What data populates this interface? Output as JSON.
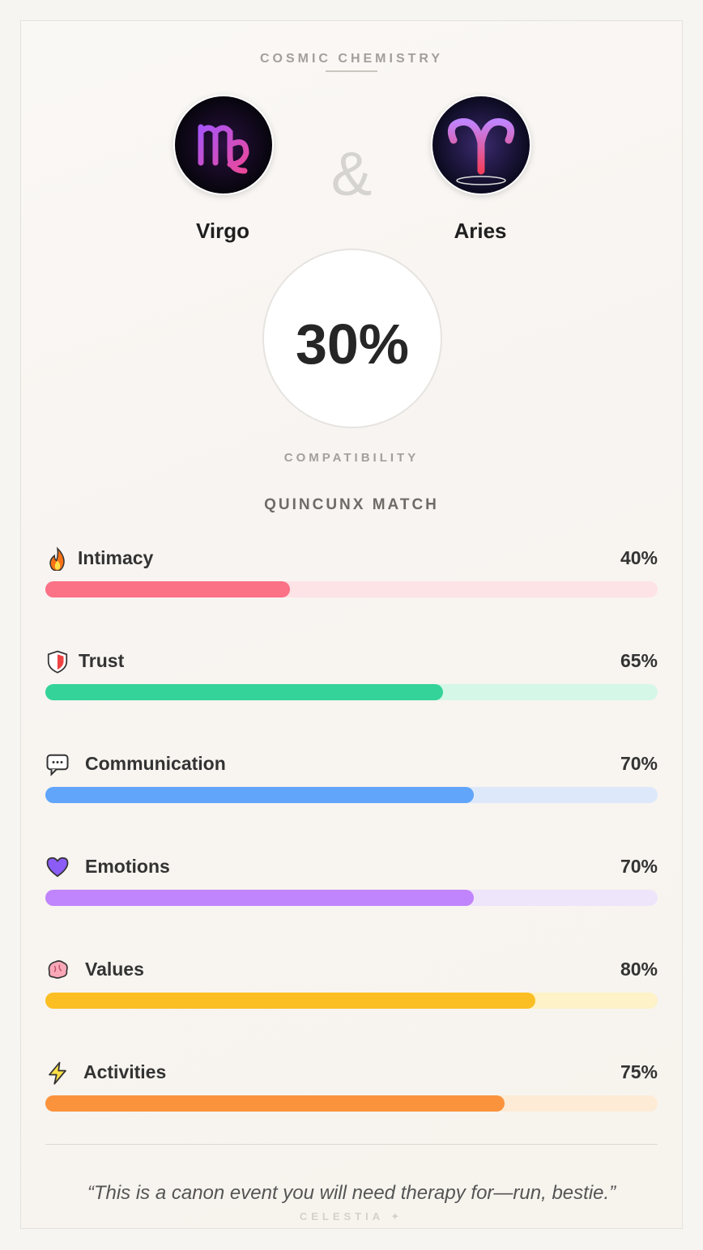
{
  "header": {
    "title": "COSMIC CHEMISTRY"
  },
  "signs": [
    {
      "name": "Virgo"
    },
    {
      "name": "Aries"
    }
  ],
  "ampersand": "&",
  "score": {
    "text": "30%",
    "caption": "COMPATIBILITY"
  },
  "match": "QUINCUNX MATCH",
  "metrics": {
    "xlim": [
      0,
      100
    ],
    "items": [
      {
        "label": "Intimacy",
        "value": 40,
        "value_label": "40%",
        "color": "#fb7185",
        "track_color": "#fde2e6"
      },
      {
        "label": "Trust",
        "value": 65,
        "value_label": "65%",
        "color": "#34d399",
        "track_color": "#d5f7e8"
      },
      {
        "label": "Communication",
        "value": 70,
        "value_label": "70%",
        "color": "#60a5fa",
        "track_color": "#dde9fb"
      },
      {
        "label": "Emotions",
        "value": 70,
        "value_label": "70%",
        "color": "#c084fc",
        "track_color": "#efe5fb"
      },
      {
        "label": "Values",
        "value": 80,
        "value_label": "80%",
        "color": "#fbbf24",
        "track_color": "#fdf2c8"
      },
      {
        "label": "Activities",
        "value": 75,
        "value_label": "75%",
        "color": "#fb923c",
        "track_color": "#fdebd6"
      }
    ]
  },
  "quote": "“This is a canon event you will need therapy for—run, bestie.”",
  "footer": "CELESTIA ✦"
}
